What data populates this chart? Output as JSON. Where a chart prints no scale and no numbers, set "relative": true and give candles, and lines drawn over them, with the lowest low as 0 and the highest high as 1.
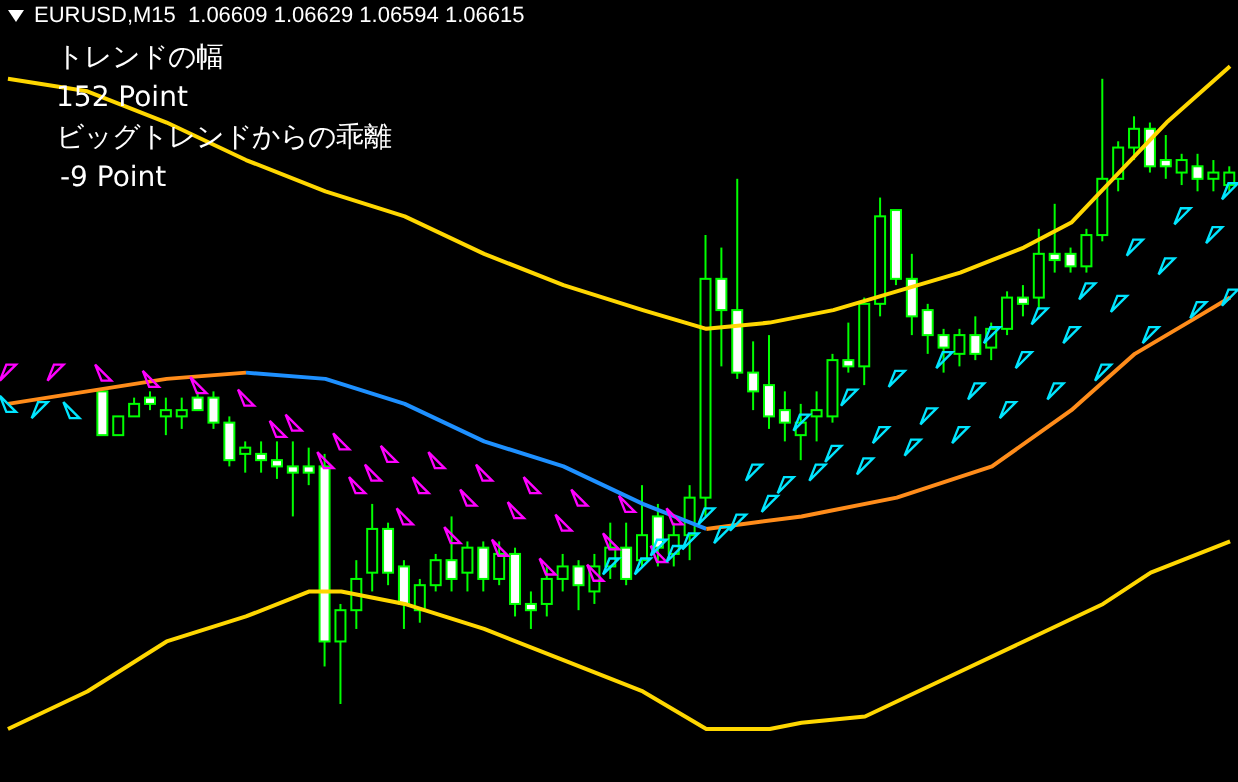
{
  "chart_data": {
    "type": "candlestick",
    "title": "EURUSD,M15  1.06609 1.06629 1.06594 1.06615",
    "relative": true,
    "color": "#00ff00",
    "tick_labels": false,
    "annotations": [
      "トレンドの幅",
      "152 Point",
      "ビッグトレンドからの乖離",
      "-9 Point"
    ],
    "categories": [
      null,
      null,
      null,
      null,
      null,
      null,
      null,
      null,
      null,
      null,
      null,
      null,
      null,
      null,
      null,
      null,
      null,
      null,
      null,
      null,
      null,
      null,
      null,
      null,
      null,
      null,
      null,
      null,
      null,
      null,
      null,
      null,
      null,
      null,
      null,
      null,
      null,
      null,
      null,
      null,
      null,
      null,
      null,
      null,
      null,
      null,
      null,
      null,
      null,
      null,
      null,
      null,
      null,
      null,
      null,
      null,
      null,
      null,
      null,
      null,
      null,
      null,
      null,
      null,
      null,
      null,
      null,
      null,
      null,
      null,
      null,
      null,
      null,
      null,
      null,
      null,
      null,
      null
    ],
    "ohlc": [
      null,
      null,
      null,
      null,
      null,
      null,
      [
        0.5,
        0.5,
        0.43,
        0.43
      ],
      [
        0.43,
        0.46,
        0.43,
        0.46
      ],
      [
        0.46,
        0.49,
        0.46,
        0.48
      ],
      [
        0.49,
        0.5,
        0.47,
        0.48
      ],
      [
        0.46,
        0.49,
        0.43,
        0.47
      ],
      [
        0.46,
        0.49,
        0.44,
        0.47
      ],
      [
        0.49,
        0.5,
        0.47,
        0.47
      ],
      [
        0.49,
        0.5,
        0.44,
        0.45
      ],
      [
        0.45,
        0.46,
        0.38,
        0.39
      ],
      [
        0.4,
        0.42,
        0.37,
        0.41
      ],
      [
        0.4,
        0.42,
        0.37,
        0.39
      ],
      [
        0.39,
        0.42,
        0.36,
        0.38
      ],
      [
        0.38,
        0.42,
        0.3,
        0.37
      ],
      [
        0.38,
        0.41,
        0.35,
        0.37
      ],
      [
        0.38,
        0.4,
        0.06,
        0.1
      ],
      [
        0.1,
        0.16,
        0,
        0.15
      ],
      [
        0.15,
        0.23,
        0.12,
        0.2
      ],
      [
        0.21,
        0.32,
        0.18,
        0.28
      ],
      [
        0.28,
        0.29,
        0.19,
        0.21
      ],
      [
        0.22,
        0.23,
        0.12,
        0.16
      ],
      [
        0.15,
        0.2,
        0.13,
        0.19
      ],
      [
        0.19,
        0.24,
        0.18,
        0.23
      ],
      [
        0.23,
        0.3,
        0.18,
        0.2
      ],
      [
        0.21,
        0.26,
        0.18,
        0.25
      ],
      [
        0.25,
        0.26,
        0.18,
        0.2
      ],
      [
        0.2,
        0.26,
        0.19,
        0.24
      ],
      [
        0.24,
        0.25,
        0.14,
        0.16
      ],
      [
        0.16,
        0.18,
        0.12,
        0.15
      ],
      [
        0.16,
        0.22,
        0.14,
        0.2
      ],
      [
        0.2,
        0.24,
        0.18,
        0.22
      ],
      [
        0.22,
        0.23,
        0.15,
        0.19
      ],
      [
        0.18,
        0.24,
        0.16,
        0.22
      ],
      [
        0.22,
        0.29,
        0.2,
        0.25
      ],
      [
        0.25,
        0.29,
        0.19,
        0.2
      ],
      [
        0.23,
        0.35,
        0.22,
        0.27
      ],
      [
        0.3,
        0.32,
        0.22,
        0.25
      ],
      [
        0.24,
        0.29,
        0.22,
        0.27
      ],
      [
        0.27,
        0.35,
        0.23,
        0.33
      ],
      [
        0.33,
        0.75,
        0.3,
        0.68
      ],
      [
        0.68,
        0.73,
        0.54,
        0.63
      ],
      [
        0.63,
        0.84,
        0.52,
        0.53
      ],
      [
        0.53,
        0.58,
        0.47,
        0.5
      ],
      [
        0.51,
        0.59,
        0.44,
        0.46
      ],
      [
        0.47,
        0.5,
        0.42,
        0.45
      ],
      [
        0.43,
        0.48,
        0.39,
        0.45
      ],
      [
        0.46,
        0.5,
        0.42,
        0.47
      ],
      [
        0.46,
        0.56,
        0.45,
        0.55
      ],
      [
        0.55,
        0.61,
        0.53,
        0.54
      ],
      [
        0.54,
        0.65,
        0.51,
        0.64
      ],
      [
        0.64,
        0.81,
        0.62,
        0.78
      ],
      [
        0.79,
        0.79,
        0.67,
        0.68
      ],
      [
        0.68,
        0.72,
        0.59,
        0.62
      ],
      [
        0.63,
        0.64,
        0.56,
        0.59
      ],
      [
        0.59,
        0.6,
        0.53,
        0.57
      ],
      [
        0.56,
        0.6,
        0.54,
        0.59
      ],
      [
        0.59,
        0.62,
        0.55,
        0.56
      ],
      [
        0.57,
        0.61,
        0.55,
        0.6
      ],
      [
        0.6,
        0.66,
        0.59,
        0.65
      ],
      [
        0.65,
        0.67,
        0.62,
        0.64
      ],
      [
        0.65,
        0.76,
        0.63,
        0.72
      ],
      [
        0.72,
        0.8,
        0.69,
        0.71
      ],
      [
        0.72,
        0.73,
        0.69,
        0.7
      ],
      [
        0.7,
        0.76,
        0.69,
        0.75
      ],
      [
        0.75,
        1,
        0.74,
        0.84
      ],
      [
        0.84,
        0.9,
        0.82,
        0.89
      ],
      [
        0.89,
        0.94,
        0.87,
        0.92
      ],
      [
        0.92,
        0.93,
        0.85,
        0.86
      ],
      [
        0.87,
        0.91,
        0.84,
        0.86
      ],
      [
        0.85,
        0.88,
        0.83,
        0.87
      ],
      [
        0.86,
        0.88,
        0.82,
        0.84
      ],
      [
        0.84,
        0.87,
        0.82,
        0.85
      ],
      [
        0.83,
        0.86,
        0.82,
        0.85
      ]
    ],
    "series": [
      {
        "type": "line",
        "color": "#ffd700",
        "values": [
          1.0,
          null,
          null,
          null,
          null,
          0.98,
          null,
          null,
          null,
          null,
          0.93,
          null,
          null,
          null,
          null,
          0.87,
          null,
          null,
          null,
          null,
          0.82,
          null,
          null,
          null,
          null,
          0.78,
          null,
          null,
          null,
          null,
          0.72,
          null,
          null,
          null,
          null,
          0.67,
          null,
          null,
          null,
          null,
          0.63,
          null,
          null,
          null,
          0.6,
          null,
          null,
          null,
          0.61,
          null,
          null,
          null,
          0.63,
          null,
          null,
          null,
          0.66,
          null,
          null,
          null,
          0.69,
          null,
          null,
          null,
          0.73,
          null,
          null,
          0.77,
          null,
          null,
          0.85,
          null,
          null,
          0.93,
          null,
          null,
          null,
          1.02
        ]
      },
      {
        "type": "line",
        "color": "#ffd700",
        "values": [
          -0.04,
          null,
          null,
          null,
          null,
          0.02,
          null,
          null,
          null,
          null,
          0.1,
          null,
          null,
          null,
          null,
          0.14,
          null,
          null,
          null,
          0.18,
          null,
          0.18,
          null,
          null,
          null,
          0.16,
          null,
          null,
          null,
          null,
          0.12,
          null,
          null,
          null,
          null,
          0.07,
          null,
          null,
          null,
          null,
          0.02,
          null,
          null,
          null,
          -0.04,
          null,
          null,
          null,
          -0.04,
          null,
          -0.03,
          null,
          null,
          null,
          -0.02,
          null,
          null,
          null,
          null,
          0.04,
          null,
          null,
          null,
          null,
          0.1,
          null,
          null,
          null,
          null,
          0.16,
          null,
          null,
          0.21,
          null,
          null,
          null,
          null,
          0.26
        ]
      },
      {
        "type": "line",
        "color": "#ff8c1a",
        "values": [
          0.48,
          null,
          null,
          null,
          null,
          0.5,
          null,
          null,
          null,
          null,
          0.52,
          null,
          null,
          null,
          null,
          0.53,
          null,
          null,
          null,
          null,
          null,
          null,
          null,
          null,
          null,
          null,
          null,
          null,
          null,
          null,
          null,
          null,
          null,
          null,
          null,
          null,
          null,
          null,
          null,
          null,
          null,
          null,
          null,
          null,
          null,
          null,
          null,
          null,
          null,
          null,
          null,
          null,
          null,
          null,
          null,
          null,
          null,
          null,
          null,
          null,
          null,
          null,
          null,
          null,
          null,
          null,
          null,
          null,
          null,
          null,
          null,
          null,
          null,
          null,
          null,
          null,
          null,
          null
        ]
      },
      {
        "type": "line",
        "color": "#1e90ff",
        "values": [
          null,
          null,
          null,
          null,
          null,
          null,
          null,
          null,
          null,
          null,
          null,
          null,
          null,
          null,
          null,
          0.53,
          null,
          null,
          null,
          null,
          0.52,
          null,
          null,
          null,
          null,
          0.48,
          null,
          null,
          null,
          null,
          0.42,
          null,
          null,
          null,
          null,
          0.38,
          null,
          null,
          null,
          null,
          0.32,
          null,
          null,
          null,
          0.28,
          null,
          null,
          null,
          null,
          null,
          null,
          null,
          null,
          null,
          null,
          null,
          null,
          null,
          null,
          null,
          null,
          null,
          null,
          null,
          null,
          null,
          null,
          null,
          null,
          null,
          null,
          null,
          null,
          null,
          null,
          null,
          null,
          null
        ]
      },
      {
        "type": "line",
        "color": "#ff8c1a",
        "values": [
          null,
          null,
          null,
          null,
          null,
          null,
          null,
          null,
          null,
          null,
          null,
          null,
          null,
          null,
          null,
          null,
          null,
          null,
          null,
          null,
          null,
          null,
          null,
          null,
          null,
          null,
          null,
          null,
          null,
          null,
          null,
          null,
          null,
          null,
          null,
          null,
          null,
          null,
          null,
          null,
          null,
          null,
          null,
          null,
          0.28,
          null,
          null,
          null,
          null,
          null,
          0.3,
          null,
          null,
          null,
          null,
          null,
          0.33,
          null,
          null,
          null,
          null,
          null,
          0.38,
          null,
          null,
          null,
          null,
          0.47,
          null,
          null,
          null,
          0.56,
          null,
          null,
          null,
          0.62,
          null,
          0.65
        ]
      },
      {
        "type": "scatter",
        "marker": "triangle",
        "color": "#ff00ff",
        "values": [
          0.53,
          null,
          null,
          0.53,
          null,
          null,
          0.53,
          null,
          null,
          0.52,
          null,
          null,
          0.51,
          null,
          null,
          0.49,
          null,
          null,
          0.45,
          null,
          null,
          0.42,
          null,
          null,
          0.4,
          null,
          null,
          0.39,
          null,
          null,
          0.37,
          null,
          null,
          0.35,
          null,
          null,
          0.33,
          null,
          null,
          0.32,
          null,
          null,
          0.3,
          null,
          null,
          null,
          null,
          null,
          null,
          null,
          null,
          null,
          null,
          null,
          null,
          null,
          null,
          null,
          null,
          null,
          null,
          null,
          null,
          null,
          null,
          null,
          null,
          null,
          null,
          null,
          null,
          null,
          null,
          null,
          null,
          null,
          null,
          null
        ]
      },
      {
        "type": "scatter",
        "marker": "triangle",
        "color": "#ff00ff",
        "values": [
          null,
          null,
          null,
          null,
          null,
          null,
          null,
          null,
          null,
          null,
          null,
          null,
          null,
          null,
          null,
          null,
          null,
          0.44,
          null,
          null,
          0.39,
          null,
          null,
          0.37,
          null,
          null,
          0.35,
          null,
          null,
          0.33,
          null,
          null,
          0.31,
          null,
          null,
          0.29,
          null,
          null,
          0.26,
          null,
          null,
          0.24,
          null,
          null,
          null,
          null,
          null,
          null,
          null,
          null,
          null,
          null,
          null,
          null,
          null,
          null,
          null,
          null,
          null,
          null,
          null,
          null,
          null,
          null,
          null,
          null,
          null,
          null,
          null,
          null,
          null,
          null,
          null,
          null,
          null,
          null,
          null,
          null
        ]
      },
      {
        "type": "scatter",
        "marker": "triangle",
        "color": "#ff00ff",
        "values": [
          null,
          null,
          null,
          null,
          null,
          null,
          null,
          null,
          null,
          null,
          null,
          null,
          null,
          null,
          null,
          null,
          null,
          null,
          null,
          null,
          null,
          null,
          0.35,
          null,
          null,
          0.3,
          null,
          null,
          0.27,
          null,
          null,
          0.25,
          null,
          null,
          0.22,
          null,
          null,
          0.21,
          null,
          null,
          null,
          null,
          null,
          null,
          null,
          null,
          null,
          null,
          null,
          null,
          null,
          null,
          null,
          null,
          null,
          null,
          null,
          null,
          null,
          null,
          null,
          null,
          null,
          null,
          null,
          null,
          null,
          null,
          null,
          null,
          null,
          null,
          null,
          null,
          null,
          null,
          null,
          null
        ]
      },
      {
        "type": "scatter",
        "marker": "triangle",
        "color": "#00e5ff",
        "values": [
          0.48,
          null,
          0.47,
          null,
          0.47,
          null,
          null,
          null,
          null,
          null,
          null,
          null,
          null,
          null,
          null,
          null,
          null,
          null,
          null,
          null,
          null,
          null,
          null,
          null,
          null,
          null,
          null,
          null,
          null,
          null,
          null,
          null,
          null,
          null,
          null,
          null,
          null,
          null,
          0.22,
          null,
          null,
          0.25,
          null,
          null,
          0.3,
          null,
          null,
          0.37,
          null,
          null,
          0.45,
          null,
          null,
          0.49,
          null,
          null,
          0.52,
          null,
          null,
          0.55,
          null,
          null,
          0.59,
          null,
          null,
          0.62,
          null,
          null,
          0.66,
          null,
          null,
          0.73,
          null,
          null,
          0.78,
          null,
          null,
          0.82
        ]
      },
      {
        "type": "scatter",
        "marker": "triangle",
        "color": "#00e5ff",
        "values": [
          null,
          null,
          null,
          null,
          null,
          null,
          null,
          null,
          null,
          null,
          null,
          null,
          null,
          null,
          null,
          null,
          null,
          null,
          null,
          null,
          null,
          null,
          null,
          null,
          null,
          null,
          null,
          null,
          null,
          null,
          null,
          null,
          null,
          null,
          null,
          null,
          null,
          null,
          null,
          null,
          0.22,
          null,
          null,
          0.26,
          null,
          null,
          0.29,
          null,
          null,
          0.35,
          null,
          null,
          0.4,
          null,
          null,
          0.43,
          null,
          null,
          0.46,
          null,
          null,
          0.5,
          null,
          null,
          0.55,
          null,
          null,
          0.59,
          null,
          null,
          0.64,
          null,
          null,
          0.7,
          null,
          null,
          0.75,
          null
        ]
      },
      {
        "type": "scatter",
        "marker": "triangle",
        "color": "#00e5ff",
        "values": [
          null,
          null,
          null,
          null,
          null,
          null,
          null,
          null,
          null,
          null,
          null,
          null,
          null,
          null,
          null,
          null,
          null,
          null,
          null,
          null,
          null,
          null,
          null,
          null,
          null,
          null,
          null,
          null,
          null,
          null,
          null,
          null,
          null,
          null,
          null,
          null,
          null,
          null,
          null,
          null,
          null,
          null,
          0.24,
          null,
          null,
          0.27,
          null,
          null,
          0.32,
          null,
          null,
          0.37,
          null,
          null,
          0.38,
          null,
          null,
          0.41,
          null,
          null,
          0.43,
          null,
          null,
          0.47,
          null,
          null,
          0.5,
          null,
          null,
          0.53,
          null,
          null,
          0.59,
          null,
          null,
          0.63,
          null,
          0.65
        ]
      }
    ]
  }
}
